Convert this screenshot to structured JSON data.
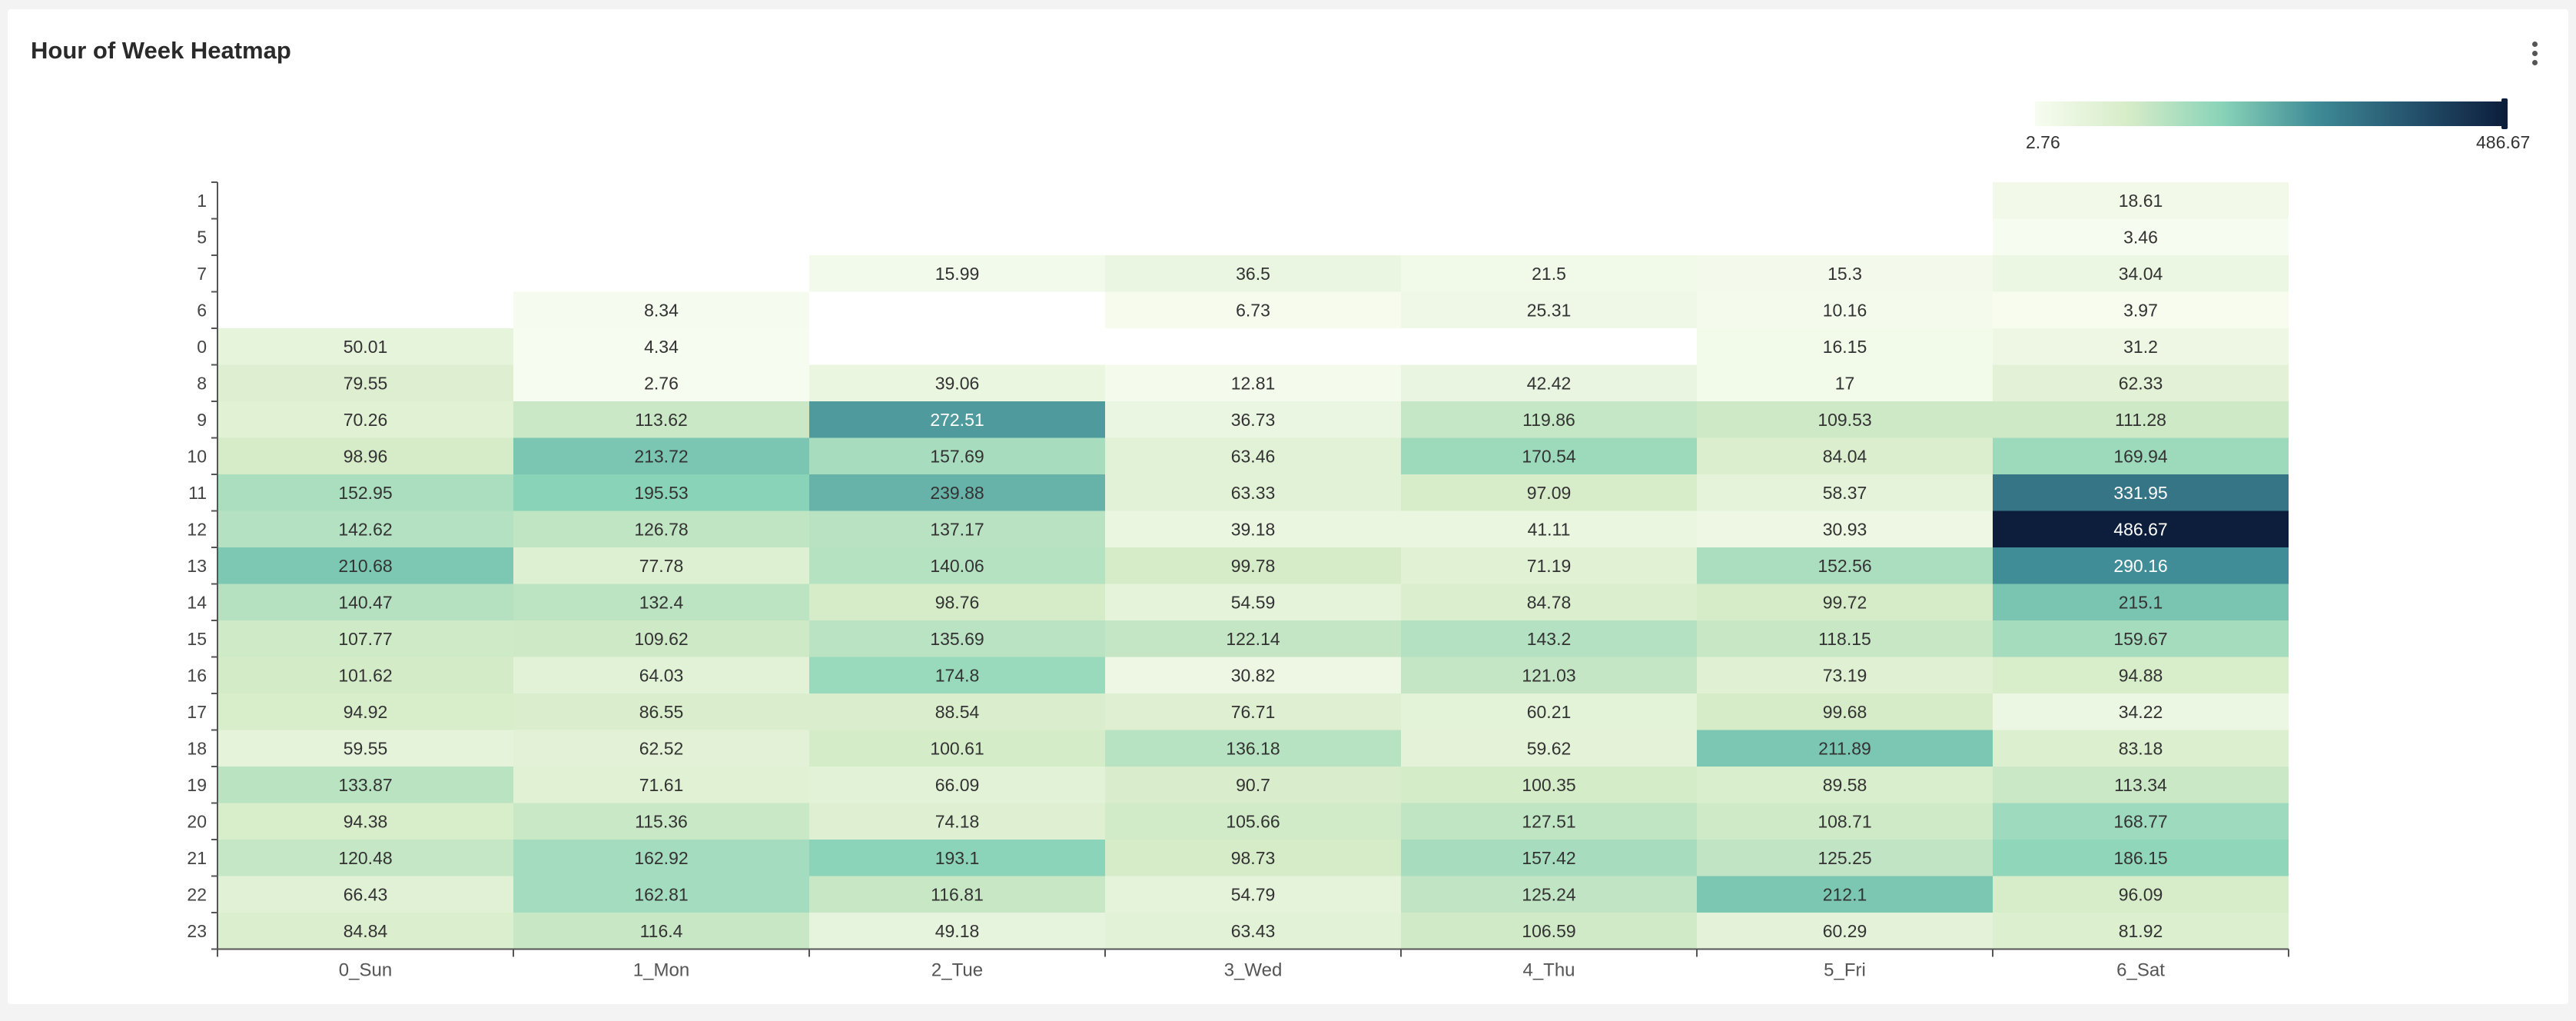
{
  "header": {
    "title": "Hour of Week Heatmap",
    "menu_icon": "more-vertical-icon"
  },
  "legend": {
    "min_label": "2.76",
    "max_label": "486.67"
  },
  "colors": {
    "scale": [
      "#f7fcf0",
      "#d6ecc8",
      "#88d3b8",
      "#3f8b96",
      "#25536e",
      "#0c1e3c"
    ],
    "empty": "#ffffff",
    "axis": "#555555"
  },
  "chart_data": {
    "type": "heatmap",
    "title": "Hour of Week Heatmap",
    "xlabel": "",
    "ylabel": "",
    "x": [
      "0_Sun",
      "1_Mon",
      "2_Tue",
      "3_Wed",
      "4_Thu",
      "5_Fri",
      "6_Sat"
    ],
    "y": [
      "1",
      "5",
      "7",
      "6",
      "0",
      "8",
      "9",
      "10",
      "11",
      "12",
      "13",
      "14",
      "15",
      "16",
      "17",
      "18",
      "19",
      "20",
      "21",
      "22",
      "23"
    ],
    "range": [
      2.76,
      486.67
    ],
    "values": [
      [
        null,
        null,
        null,
        null,
        null,
        null,
        18.61
      ],
      [
        null,
        null,
        null,
        null,
        null,
        null,
        3.46
      ],
      [
        null,
        null,
        15.99,
        36.5,
        21.5,
        15.3,
        34.04
      ],
      [
        null,
        8.34,
        null,
        6.73,
        25.31,
        10.16,
        3.97
      ],
      [
        50.01,
        4.34,
        null,
        null,
        null,
        16.15,
        31.2
      ],
      [
        79.55,
        2.76,
        39.06,
        12.81,
        42.42,
        17,
        62.33
      ],
      [
        70.26,
        113.62,
        272.51,
        36.73,
        119.86,
        109.53,
        111.28
      ],
      [
        98.96,
        213.72,
        157.69,
        63.46,
        170.54,
        84.04,
        169.94
      ],
      [
        152.95,
        195.53,
        239.88,
        63.33,
        97.09,
        58.37,
        331.95
      ],
      [
        142.62,
        126.78,
        137.17,
        39.18,
        41.11,
        30.93,
        486.67
      ],
      [
        210.68,
        77.78,
        140.06,
        99.78,
        71.19,
        152.56,
        290.16
      ],
      [
        140.47,
        132.4,
        98.76,
        54.59,
        84.78,
        99.72,
        215.1
      ],
      [
        107.77,
        109.62,
        135.69,
        122.14,
        143.2,
        118.15,
        159.67
      ],
      [
        101.62,
        64.03,
        174.8,
        30.82,
        121.03,
        73.19,
        94.88
      ],
      [
        94.92,
        86.55,
        88.54,
        76.71,
        60.21,
        99.68,
        34.22
      ],
      [
        59.55,
        62.52,
        100.61,
        136.18,
        59.62,
        211.89,
        83.18
      ],
      [
        133.87,
        71.61,
        66.09,
        90.7,
        100.35,
        89.58,
        113.34
      ],
      [
        94.38,
        115.36,
        74.18,
        105.66,
        127.51,
        108.71,
        168.77
      ],
      [
        120.48,
        162.92,
        193.1,
        98.73,
        157.42,
        125.25,
        186.15
      ],
      [
        66.43,
        162.81,
        116.81,
        54.79,
        125.24,
        212.1,
        96.09
      ],
      [
        84.84,
        116.4,
        49.18,
        63.43,
        106.59,
        60.29,
        81.92
      ]
    ]
  }
}
